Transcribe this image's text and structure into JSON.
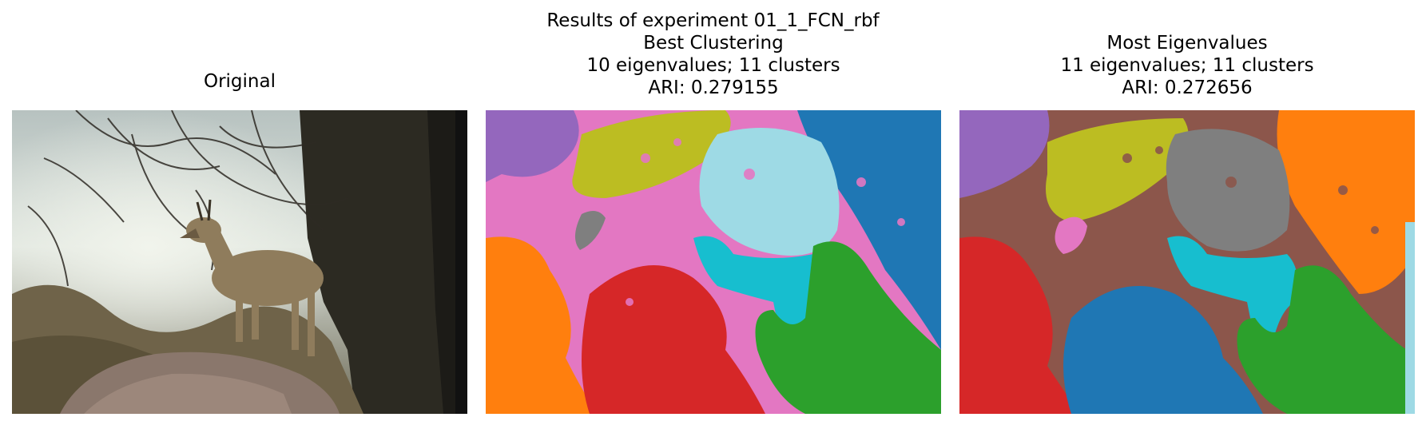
{
  "figure": {
    "suptitle": "Results of experiment 01_1_FCN_rbf"
  },
  "panels": [
    {
      "title_lines": [
        "Original"
      ]
    },
    {
      "title_lines": [
        "Best Clustering",
        "10 eigenvalues; 11 clusters",
        "ARI: 0.279155"
      ]
    },
    {
      "title_lines": [
        "Most Eigenvalues",
        "11 eigenvalues; 11 clusters",
        "ARI: 0.272656"
      ]
    }
  ],
  "cluster_palette": {
    "blue": "#1f77b4",
    "orange": "#ff7f0e",
    "green": "#2ca02c",
    "red": "#d62728",
    "purple": "#9467bd",
    "brown": "#8c564b",
    "pink": "#e377c2",
    "gray": "#7f7f7f",
    "olive": "#bcbd22",
    "cyan": "#17becf",
    "lightcyan": "#9edae5"
  }
}
